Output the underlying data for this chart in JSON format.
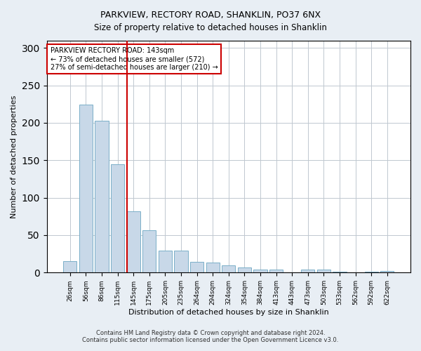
{
  "title1": "PARKVIEW, RECTORY ROAD, SHANKLIN, PO37 6NX",
  "title2": "Size of property relative to detached houses in Shanklin",
  "xlabel": "Distribution of detached houses by size in Shanklin",
  "ylabel": "Number of detached properties",
  "categories": [
    "26sqm",
    "56sqm",
    "86sqm",
    "115sqm",
    "145sqm",
    "175sqm",
    "205sqm",
    "235sqm",
    "264sqm",
    "294sqm",
    "324sqm",
    "354sqm",
    "384sqm",
    "413sqm",
    "443sqm",
    "473sqm",
    "503sqm",
    "533sqm",
    "562sqm",
    "592sqm",
    "622sqm"
  ],
  "values": [
    15,
    224,
    203,
    145,
    82,
    57,
    29,
    29,
    14,
    13,
    10,
    7,
    4,
    4,
    0,
    4,
    4,
    1,
    0,
    1,
    2
  ],
  "bar_color": "#c8d8e8",
  "bar_edge_color": "#7aafc8",
  "vline_x_index": 4,
  "vline_color": "#cc0000",
  "annotation_text": "PARKVIEW RECTORY ROAD: 143sqm\n← 73% of detached houses are smaller (572)\n27% of semi-detached houses are larger (210) →",
  "annotation_box_color": "#ffffff",
  "annotation_box_edge": "#cc0000",
  "ylim": [
    0,
    310
  ],
  "yticks": [
    0,
    50,
    100,
    150,
    200,
    250,
    300
  ],
  "footer1": "Contains HM Land Registry data © Crown copyright and database right 2024.",
  "footer2": "Contains public sector information licensed under the Open Government Licence v3.0.",
  "bg_color": "#e8eef4",
  "plot_bg_color": "#ffffff",
  "grid_color": "#c0c8d0"
}
